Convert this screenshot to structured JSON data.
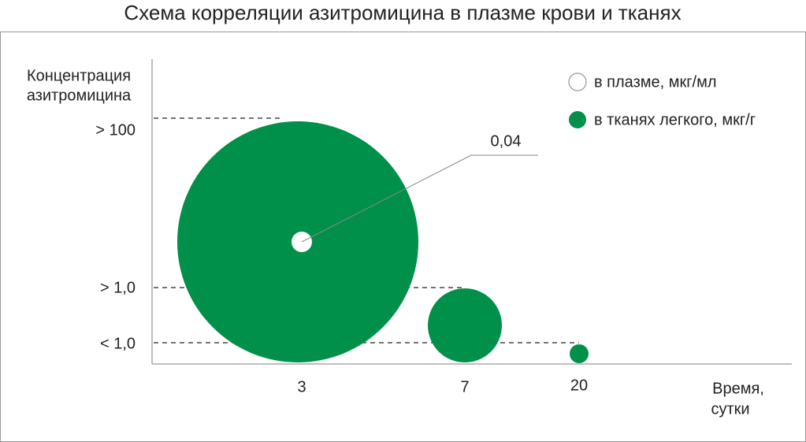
{
  "title": "Схема корреляции азитромицина в плазме крови и тканях",
  "y_axis": {
    "label": [
      "Концентрация",
      "азитромицина"
    ],
    "ticks": [
      "> 100",
      "> 1,0",
      "< 1,0"
    ]
  },
  "x_axis": {
    "label": [
      "Время,",
      "сутки"
    ],
    "ticks": [
      "3",
      "7",
      "20"
    ]
  },
  "legend": [
    {
      "label": "в плазме, мкг/мл"
    },
    {
      "label": "в тканях легкого, мкг/г"
    }
  ],
  "annotation": "0,04"
}
